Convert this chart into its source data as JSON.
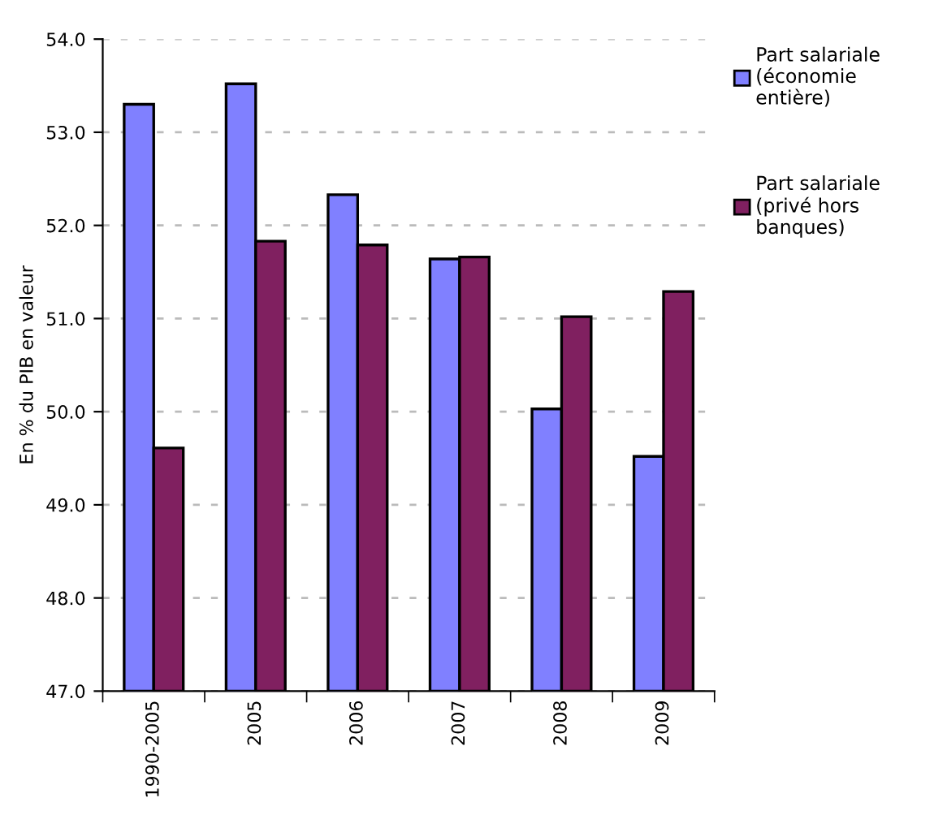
{
  "chart_data": {
    "type": "bar",
    "ylabel": "En % du PIB en valeur",
    "categories": [
      "1990-2005",
      "2005",
      "2006",
      "2007",
      "2008",
      "2009"
    ],
    "series": [
      {
        "name": "Part salariale\n(économie\nentière)",
        "color": "#8080ff",
        "values": [
          53.3,
          53.52,
          52.33,
          51.64,
          50.03,
          49.52
        ]
      },
      {
        "name": "Part salariale\n(privé hors\nbanques)",
        "color": "#802060",
        "values": [
          49.61,
          51.83,
          51.79,
          51.66,
          51.02,
          51.29
        ]
      }
    ],
    "ylim": [
      47.0,
      54.0
    ],
    "yticks": [
      {
        "value": 47,
        "label": "47.0"
      },
      {
        "value": 48,
        "label": "48.0"
      },
      {
        "value": 49,
        "label": "49.0"
      },
      {
        "value": 50,
        "label": "50.0"
      },
      {
        "value": 51,
        "label": "51.0"
      },
      {
        "value": 52,
        "label": "52.0"
      },
      {
        "value": 53,
        "label": "53.0"
      },
      {
        "value": 54,
        "label": "54.0"
      }
    ],
    "grid": "y",
    "legend": "right"
  }
}
